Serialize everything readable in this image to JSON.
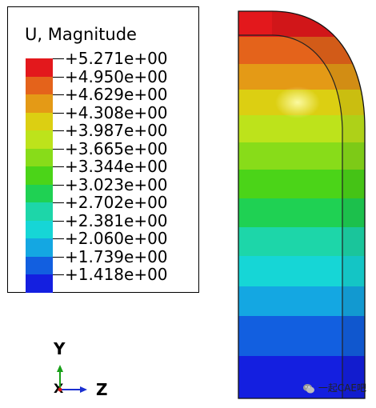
{
  "legend": {
    "title": "U, Magnitude",
    "labels": [
      "+5.271e+00",
      "+4.950e+00",
      "+4.629e+00",
      "+4.308e+00",
      "+3.987e+00",
      "+3.665e+00",
      "+3.344e+00",
      "+3.023e+00",
      "+2.702e+00",
      "+2.381e+00",
      "+2.060e+00",
      "+1.739e+00",
      "+1.418e+00"
    ],
    "colors": [
      "#e3181c",
      "#e4631b",
      "#e49a16",
      "#dccf12",
      "#bde31b",
      "#88dc19",
      "#4bd418",
      "#1fd153",
      "#1dd6a9",
      "#16d6d6",
      "#14a7e2",
      "#125fe0",
      "#141fe0"
    ]
  },
  "triad": {
    "y": "Y",
    "z": "Z",
    "x": "X"
  },
  "watermark": {
    "text": "一起CAE吧",
    "icon": "wechat-icon"
  },
  "contour": {
    "bands_top_to_bottom": [
      "#e3181c",
      "#e4631b",
      "#e49a16",
      "#dccf12",
      "#bde31b",
      "#88dc19",
      "#4bd418",
      "#1fd153",
      "#1dd6a9",
      "#16d6d6",
      "#14a7e2",
      "#125fe0",
      "#141fe0"
    ]
  }
}
